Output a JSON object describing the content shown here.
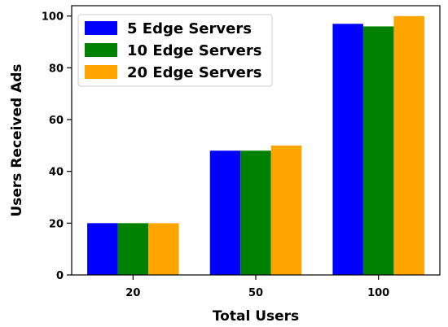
{
  "chart_data": {
    "type": "bar",
    "title": "",
    "xlabel": "Total Users",
    "ylabel": "Users Received Ads",
    "categories": [
      "20",
      "50",
      "100"
    ],
    "series": [
      {
        "name": "5 Edge Servers",
        "values": [
          20,
          48,
          97
        ],
        "color": "#0000ff"
      },
      {
        "name": "10 Edge Servers",
        "values": [
          20,
          48,
          96
        ],
        "color": "#008000"
      },
      {
        "name": "20 Edge Servers",
        "values": [
          20,
          50,
          100
        ],
        "color": "#ffa500"
      }
    ],
    "ylim": [
      0,
      104
    ],
    "yticks": [
      0,
      20,
      40,
      60,
      80,
      100
    ],
    "grid": false,
    "legend_position": "top-left"
  }
}
